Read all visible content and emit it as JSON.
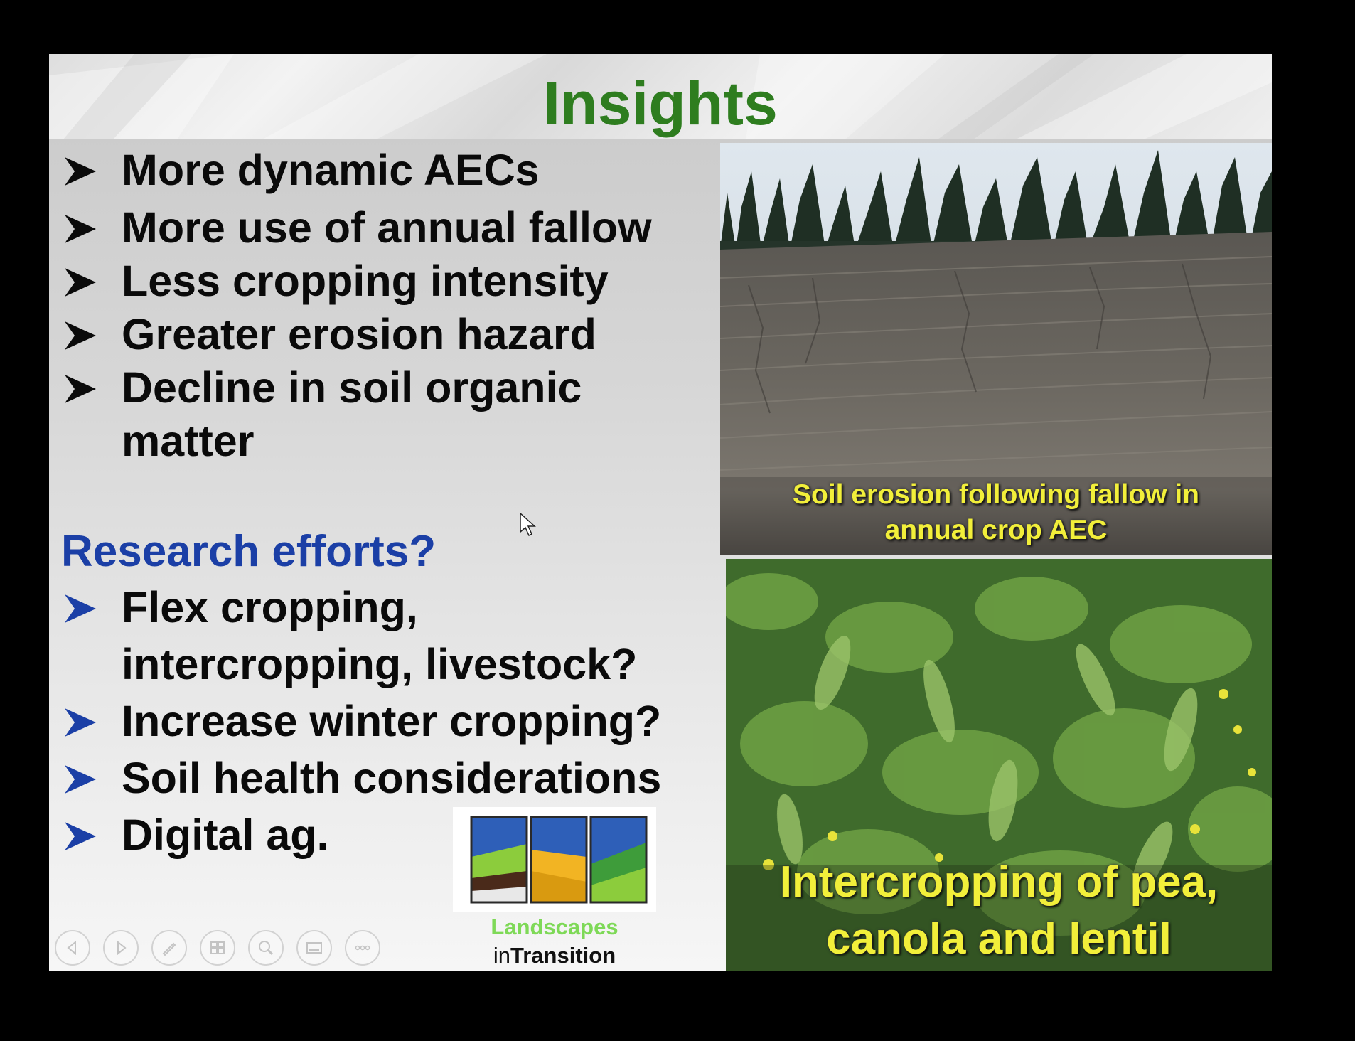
{
  "slide": {
    "title": "Insights",
    "insights": [
      {
        "line1": "More dynamic AECs",
        "line2": ""
      },
      {
        "line1": "More use of annual fallow",
        "line2": ""
      },
      {
        "line1": "Less cropping intensity",
        "line2": ""
      },
      {
        "line1": "Greater erosion hazard",
        "line2": ""
      },
      {
        "line1": "Decline in soil organic",
        "line2": "matter"
      }
    ],
    "research_heading": "Research efforts?",
    "research_items": [
      {
        "line1": "Flex cropping,",
        "line2": "intercropping, livestock?"
      },
      {
        "line1": "Increase winter cropping?",
        "line2": ""
      },
      {
        "line1": "Soil health considerations",
        "line2": ""
      },
      {
        "line1": "Digital ag.",
        "line2": ""
      }
    ],
    "photo_erosion_caption": {
      "line1": "Soil erosion following fallow in",
      "line2": "annual crop AEC"
    },
    "photo_peas_caption": {
      "line1": "Intercropping of pea,",
      "line2": "canola and lentil"
    },
    "logo": {
      "word1": "Landscapes",
      "prefix": "in",
      "word2": "Transition"
    }
  },
  "colors": {
    "title": "#2e7d1f",
    "research_heading": "#1b3fa6",
    "caption": "#f2ef3a",
    "logo_green": "#7ed957"
  },
  "toolbar": {
    "buttons": [
      "previous-slide-icon",
      "next-slide-icon",
      "pen-icon",
      "slides-grid-icon",
      "zoom-icon",
      "subtitles-icon",
      "more-options-icon"
    ]
  }
}
